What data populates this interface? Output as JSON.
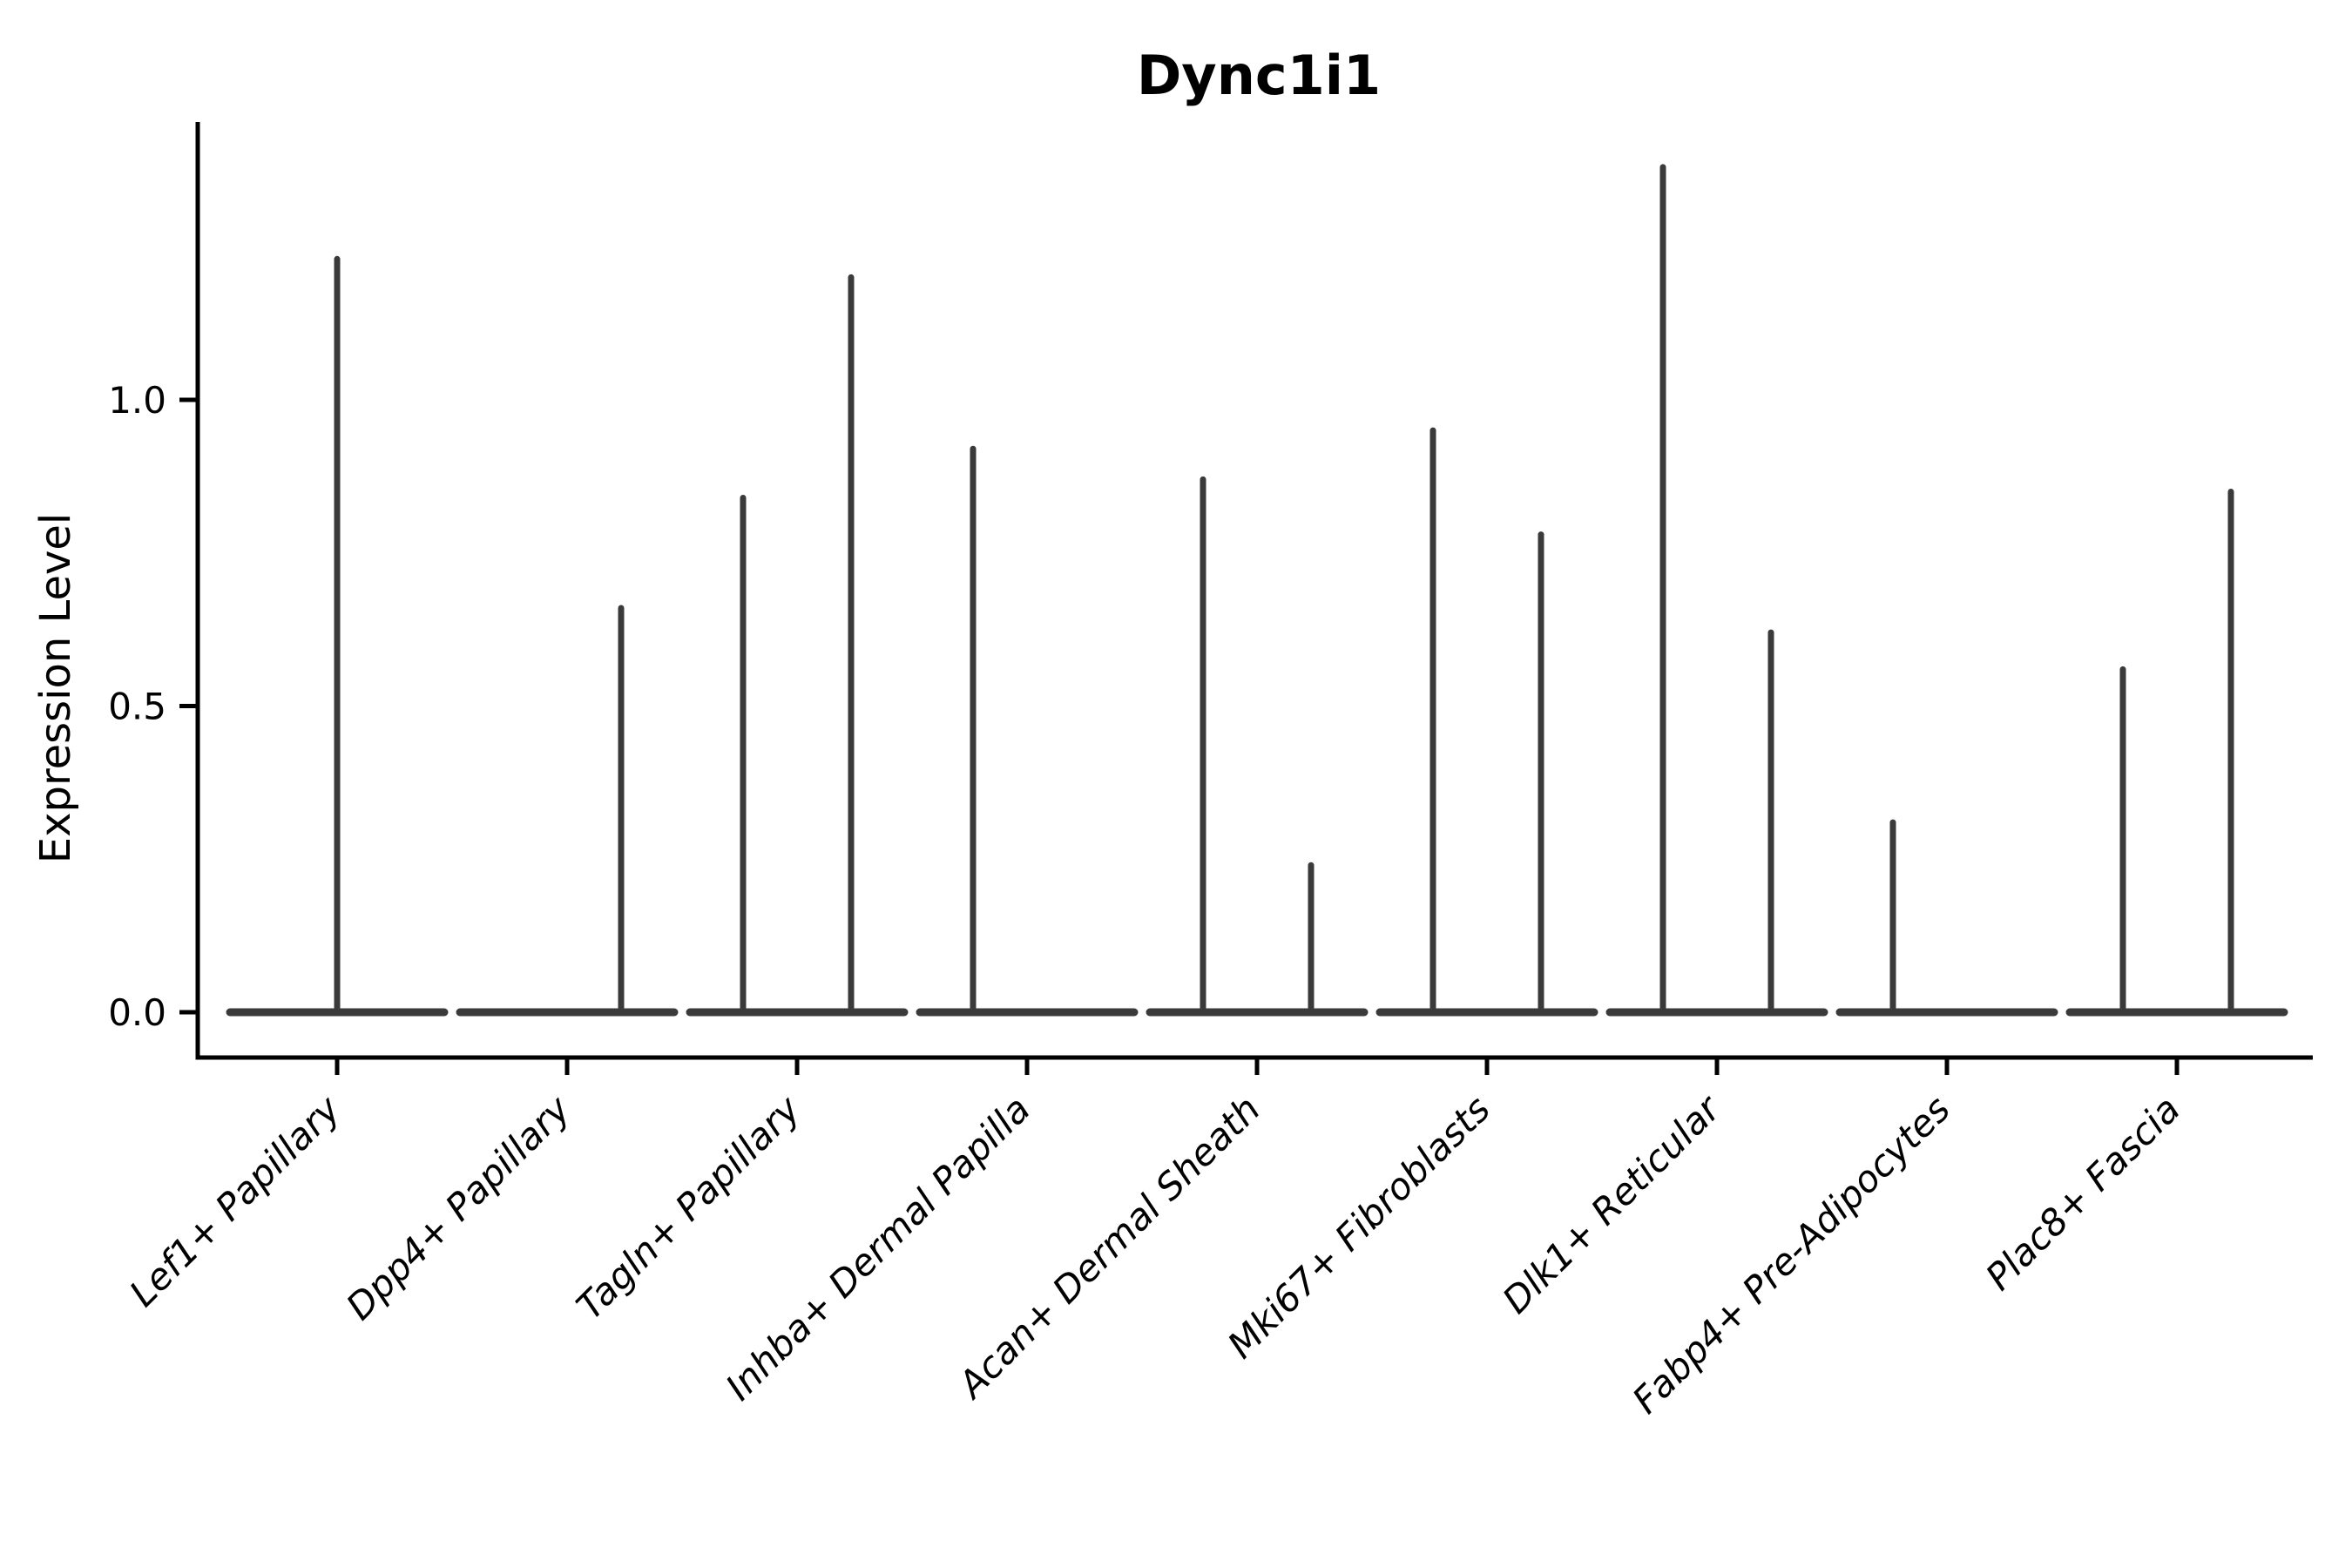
{
  "chart_data": {
    "type": "violin",
    "title": "Dync1i1",
    "xlabel": "",
    "ylabel": "Expression Level",
    "ylim": [
      -0.07,
      1.45
    ],
    "yticks": [
      0.0,
      0.5,
      1.0
    ],
    "ytick_labels": [
      "0.0",
      "0.5",
      "1.0"
    ],
    "grid": false,
    "legend_position": "none",
    "categories": [
      "Lef1+ Papillary",
      "Dpp4+ Papillary",
      "Tagln+ Papillary",
      "Inhba+ Dermal Papilla",
      "Acan+ Dermal Sheath",
      "Mki67+ Fibroblasts",
      "Dlk1+ Reticular",
      "Fabp4+ Pre-Adipocytes",
      "Plac8+ Fascia"
    ],
    "description": "Violin plot of Dync1i1 expression per dermal fibroblast cluster. Expression is zero in nearly all cells, so each violin collapses to a flat bar at 0 with thin density spikes rising to the maximum expressing cells; spikes sit at the center or at dodged left/right sub-violin positions within each category slot.",
    "violins": [
      {
        "category": "Lef1+ Papillary",
        "baseline": 0.0,
        "spikes": [
          {
            "position": "center",
            "peak": 1.23
          }
        ]
      },
      {
        "category": "Dpp4+ Papillary",
        "baseline": 0.0,
        "spikes": [
          {
            "position": "right",
            "peak": 0.66
          }
        ]
      },
      {
        "category": "Tagln+ Papillary",
        "baseline": 0.0,
        "spikes": [
          {
            "position": "left",
            "peak": 0.84
          },
          {
            "position": "right",
            "peak": 1.2
          }
        ]
      },
      {
        "category": "Inhba+ Dermal Papilla",
        "baseline": 0.0,
        "spikes": [
          {
            "position": "left",
            "peak": 0.92
          }
        ]
      },
      {
        "category": "Acan+ Dermal Sheath",
        "baseline": 0.0,
        "spikes": [
          {
            "position": "left",
            "peak": 0.87
          },
          {
            "position": "right",
            "peak": 0.24
          }
        ]
      },
      {
        "category": "Mki67+ Fibroblasts",
        "baseline": 0.0,
        "spikes": [
          {
            "position": "left",
            "peak": 0.95
          },
          {
            "position": "right",
            "peak": 0.78
          }
        ]
      },
      {
        "category": "Dlk1+ Reticular",
        "baseline": 0.0,
        "spikes": [
          {
            "position": "left",
            "peak": 1.38
          },
          {
            "position": "right",
            "peak": 0.62
          }
        ]
      },
      {
        "category": "Fabp4+ Pre-Adipocytes",
        "baseline": 0.0,
        "spikes": [
          {
            "position": "left",
            "peak": 0.31
          }
        ]
      },
      {
        "category": "Plac8+ Fascia",
        "baseline": 0.0,
        "spikes": [
          {
            "position": "left",
            "peak": 0.56
          },
          {
            "position": "right",
            "peak": 0.85
          }
        ]
      }
    ],
    "colors": {
      "violin": "#3a3a3a",
      "axis": "#000000",
      "text": "#000000",
      "background": "#ffffff"
    }
  }
}
